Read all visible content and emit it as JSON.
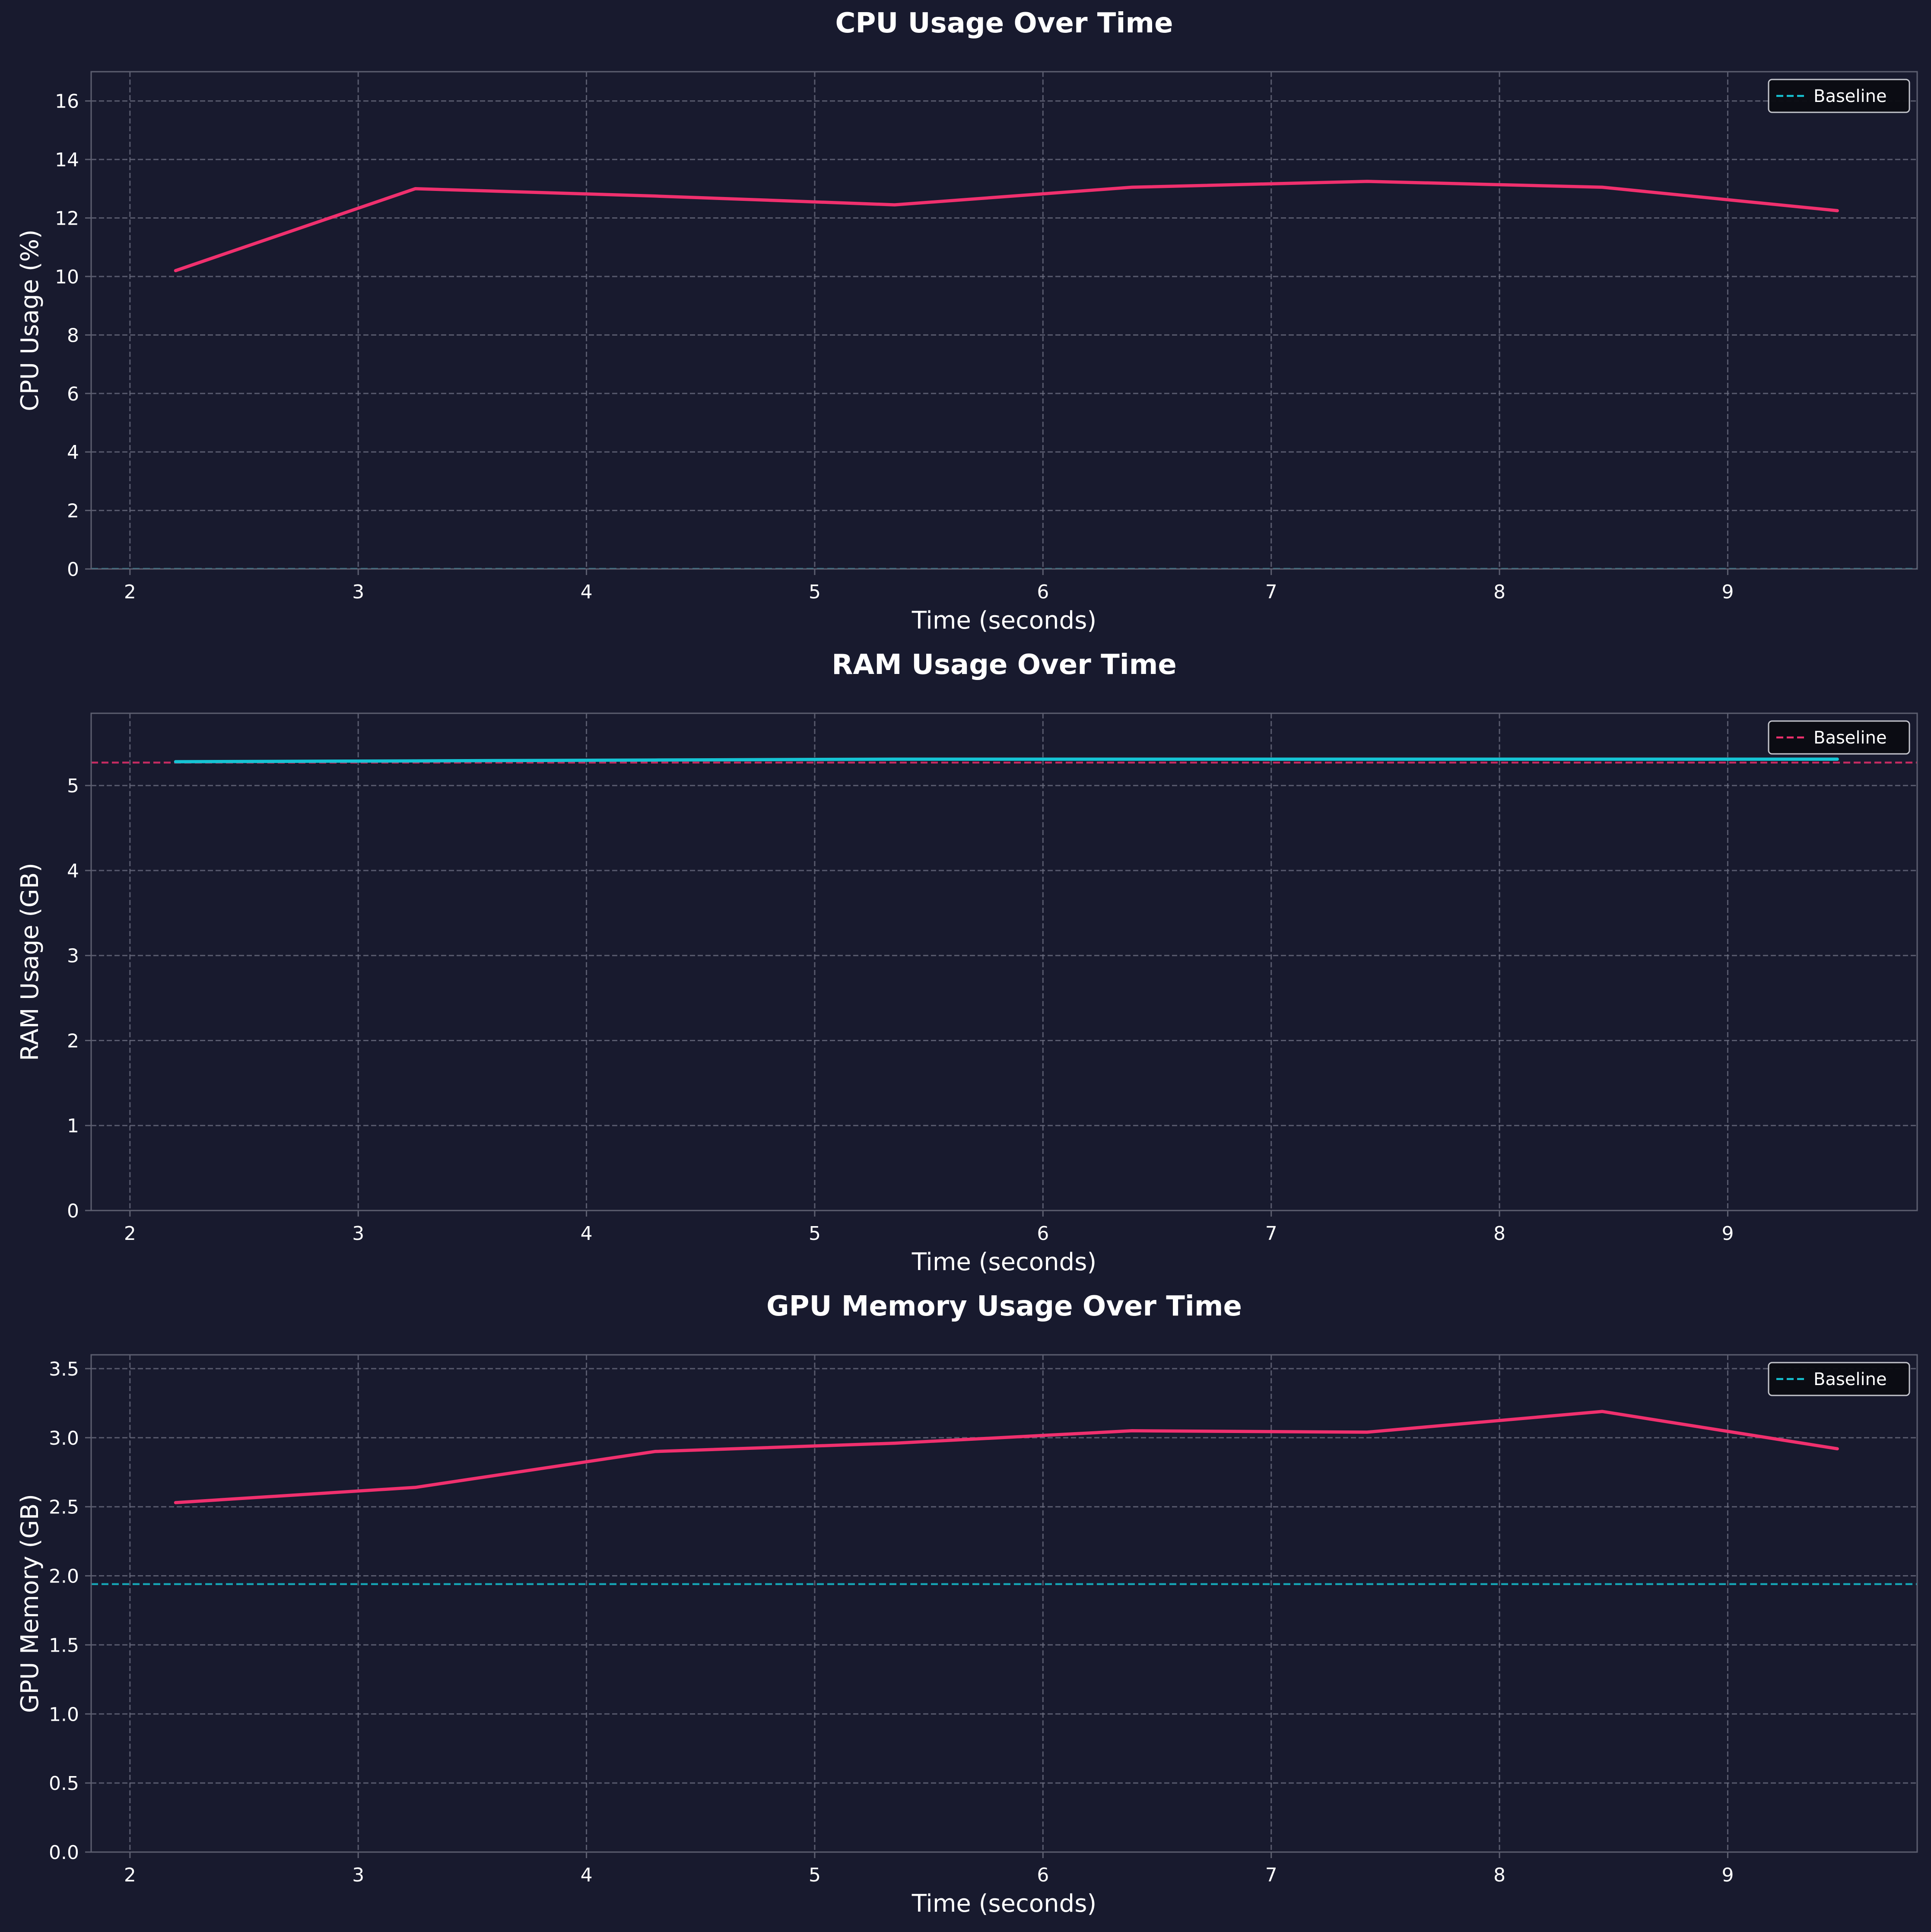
{
  "colors": {
    "background": "#181a2e",
    "axes_face": "#181a2e",
    "spine": "#5d5f70",
    "grid": "#6e7082",
    "text": "#ffffff",
    "pink": "#f0306e",
    "cyan": "#16c4d4",
    "legend_bg": "#0b0c12"
  },
  "chart_data": [
    {
      "type": "line",
      "title": "CPU Usage Over Time",
      "xlabel": "Time (seconds)",
      "ylabel": "CPU Usage (%)",
      "xlim": [
        1.83,
        9.83
      ],
      "ylim": [
        0,
        17
      ],
      "xticks": [
        2,
        3,
        4,
        5,
        6,
        7,
        8,
        9
      ],
      "yticks": [
        0,
        2,
        4,
        6,
        8,
        10,
        12,
        14,
        16
      ],
      "grid": true,
      "legend_position": "top-right",
      "series": [
        {
          "color": "#f0306e",
          "x": [
            2.2,
            3.25,
            4.3,
            5.35,
            6.39,
            7.42,
            8.45,
            9.48
          ],
          "y": [
            10.2,
            13.0,
            12.75,
            12.45,
            13.05,
            13.25,
            13.05,
            12.25
          ]
        }
      ],
      "baseline": {
        "name": "Baseline",
        "value": 0,
        "color": "#16c4d4"
      }
    },
    {
      "type": "line",
      "title": "RAM Usage Over Time",
      "xlabel": "Time (seconds)",
      "ylabel": "RAM Usage (GB)",
      "xlim": [
        1.83,
        9.83
      ],
      "ylim": [
        0,
        5.85
      ],
      "xticks": [
        2,
        3,
        4,
        5,
        6,
        7,
        8,
        9
      ],
      "yticks": [
        0,
        1,
        2,
        3,
        4,
        5
      ],
      "grid": true,
      "legend_position": "top-right",
      "series": [
        {
          "color": "#16c4d4",
          "x": [
            2.2,
            3.25,
            4.3,
            5.35,
            6.39,
            7.42,
            8.45,
            9.48
          ],
          "y": [
            5.28,
            5.29,
            5.3,
            5.31,
            5.31,
            5.31,
            5.31,
            5.31
          ]
        }
      ],
      "baseline": {
        "name": "Baseline",
        "value": 5.27,
        "color": "#f0306e"
      }
    },
    {
      "type": "line",
      "title": "GPU Memory Usage Over Time",
      "xlabel": "Time (seconds)",
      "ylabel": "GPU Memory (GB)",
      "xlim": [
        1.83,
        9.83
      ],
      "ylim": [
        0,
        3.6
      ],
      "xticks": [
        2,
        3,
        4,
        5,
        6,
        7,
        8,
        9
      ],
      "yticks": [
        "0.0",
        "0.5",
        "1.0",
        "1.5",
        "2.0",
        "2.5",
        "3.0",
        "3.5"
      ],
      "grid": true,
      "legend_position": "top-right",
      "series": [
        {
          "color": "#f0306e",
          "x": [
            2.2,
            3.25,
            4.3,
            5.35,
            6.39,
            7.42,
            8.45,
            9.48
          ],
          "y": [
            2.53,
            2.64,
            2.9,
            2.96,
            3.05,
            3.04,
            3.19,
            2.92
          ]
        }
      ],
      "baseline": {
        "name": "Baseline",
        "value": 1.94,
        "color": "#16c4d4"
      }
    }
  ]
}
